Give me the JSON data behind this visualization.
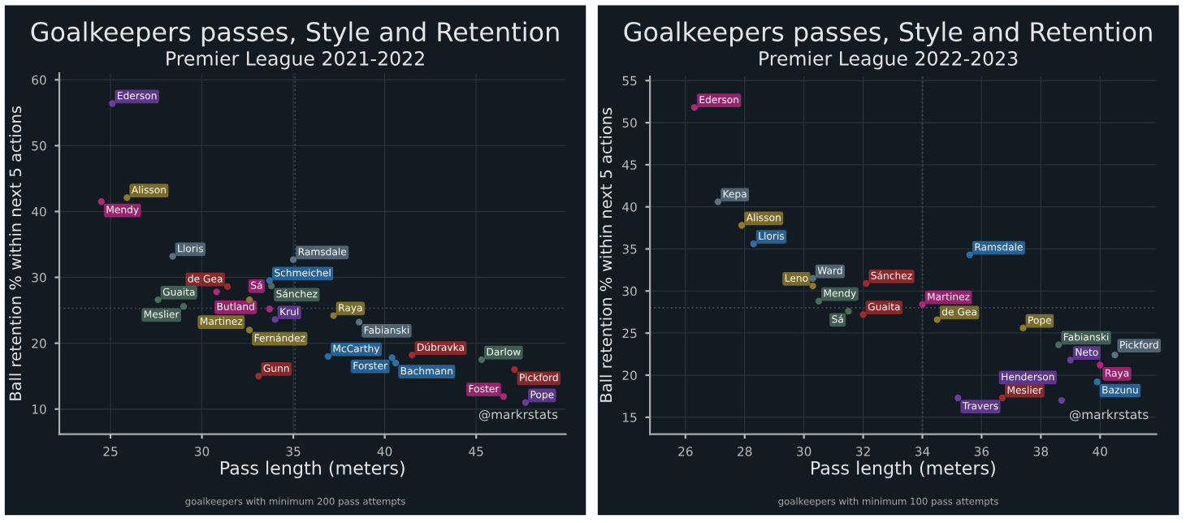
{
  "chart_data": [
    {
      "type": "scatter",
      "title": "Goalkeepers passes, Style and Retention",
      "subtitle": "Premier League 2021-2022",
      "xlabel": "Pass length (meters)",
      "ylabel": "Ball retention % within next 5 actions",
      "x": [
        25.1,
        25.9,
        24.5,
        28.4,
        35.0,
        33.7,
        33.8,
        31.4,
        30.8,
        27.6,
        29.0,
        32.6,
        33.7,
        34.0,
        32.6,
        37.2,
        38.6,
        36.9,
        40.4,
        41.5,
        40.6,
        33.1,
        45.3,
        47.1,
        46.5,
        47.7
      ],
      "values": [
        56.4,
        42.1,
        41.5,
        33.2,
        32.7,
        29.5,
        28.7,
        28.6,
        27.8,
        26.6,
        25.6,
        26.6,
        25.2,
        23.6,
        22.0,
        24.2,
        23.2,
        18.0,
        17.8,
        18.2,
        17.0,
        15.0,
        17.5,
        16.0,
        11.9,
        11.0
      ],
      "colors": [
        "#6a3d9a",
        "#8c7a2a",
        "#b0267a",
        "#5a7080",
        "#5a7080",
        "#2a6fa8",
        "#4a6a5a",
        "#9b2d2d",
        "#b0267a",
        "#4a6a5a",
        "#4a6a5a",
        "#8c7a2a",
        "#b0267a",
        "#6a3d9a",
        "#8c7a2a",
        "#8c7a2a",
        "#5a7080",
        "#2a6fa8",
        "#2a6fa8",
        "#9b2d2d",
        "#2a6fa8",
        "#9b2d2d",
        "#4a6a5a",
        "#9b2d2d",
        "#b0267a",
        "#6a3d9a"
      ],
      "annotations": [
        {
          "text": "Ederson",
          "x": 25.1,
          "y": 56.4
        },
        {
          "text": "Alisson",
          "x": 25.9,
          "y": 42.1
        },
        {
          "text": "Mendy",
          "x": 24.5,
          "y": 41.5
        },
        {
          "text": "Lloris",
          "x": 28.4,
          "y": 33.2
        },
        {
          "text": "Ramsdale",
          "x": 35.0,
          "y": 32.7
        },
        {
          "text": "Schmeichel",
          "x": 33.7,
          "y": 29.5
        },
        {
          "text": "Sánchez",
          "x": 33.8,
          "y": 28.7
        },
        {
          "text": "de Gea",
          "x": 31.4,
          "y": 28.6
        },
        {
          "text": "Butland",
          "x": 30.8,
          "y": 27.8
        },
        {
          "text": "Guaita",
          "x": 27.6,
          "y": 26.6
        },
        {
          "text": "Meslier",
          "x": 29.0,
          "y": 25.6
        },
        {
          "text": "Martinez",
          "x": 32.6,
          "y": 26.6
        },
        {
          "text": "Sá",
          "x": 33.7,
          "y": 25.2
        },
        {
          "text": "Krul",
          "x": 34.0,
          "y": 23.6
        },
        {
          "text": "Fernández",
          "x": 32.6,
          "y": 22.0
        },
        {
          "text": "Raya",
          "x": 37.2,
          "y": 24.2
        },
        {
          "text": "Fabianski",
          "x": 38.6,
          "y": 23.2
        },
        {
          "text": "McCarthy",
          "x": 36.9,
          "y": 18.0
        },
        {
          "text": "Forster",
          "x": 40.4,
          "y": 17.8
        },
        {
          "text": "Dúbravka",
          "x": 41.5,
          "y": 18.2
        },
        {
          "text": "Bachmann",
          "x": 40.6,
          "y": 17.0
        },
        {
          "text": "Gunn",
          "x": 33.1,
          "y": 15.0
        },
        {
          "text": "Darlow",
          "x": 45.3,
          "y": 17.5
        },
        {
          "text": "Pickford",
          "x": 47.1,
          "y": 16.0
        },
        {
          "text": "Foster",
          "x": 46.5,
          "y": 11.9
        },
        {
          "text": "Pope",
          "x": 47.7,
          "y": 11.0
        },
        "@markrstats",
        "goalkeepers with minimum 200 pass attempts"
      ],
      "xlim": [
        22.2,
        49.9
      ],
      "ylim": [
        6.2,
        61
      ],
      "xticks": [
        25,
        30,
        35,
        40,
        45
      ],
      "yticks": [
        10,
        20,
        30,
        40,
        50,
        60
      ],
      "grid": true,
      "marker": "circle",
      "ref_lines": [
        {
          "axis": "x",
          "value": 35.1,
          "line_style": "dotted"
        },
        {
          "axis": "y",
          "value": 25.3,
          "line_style": "dotted"
        }
      ]
    },
    {
      "type": "scatter",
      "title": "Goalkeepers passes, Style and Retention",
      "subtitle": "Premier League 2022-2023",
      "xlabel": "Pass length (meters)",
      "ylabel": "Ball retention % within next 5 actions",
      "x": [
        26.3,
        27.1,
        27.9,
        28.3,
        35.6,
        30.3,
        30.3,
        30.5,
        31.5,
        32.0,
        32.1,
        34.0,
        34.5,
        37.4,
        38.6,
        39.0,
        40.5,
        40.0,
        39.9,
        35.2,
        36.7,
        38.7
      ],
      "values": [
        51.8,
        40.6,
        37.8,
        35.6,
        34.3,
        31.5,
        30.6,
        28.8,
        27.6,
        27.2,
        30.9,
        28.4,
        26.6,
        25.6,
        23.6,
        21.8,
        22.4,
        21.2,
        19.2,
        17.3,
        17.3,
        17.0
      ],
      "colors": [
        "#b0267a",
        "#5a7080",
        "#8c7a2a",
        "#2a6fa8",
        "#2a6fa8",
        "#5a7080",
        "#8c7a2a",
        "#4a6a5a",
        "#4a6a5a",
        "#9b2d2d",
        "#9b2d2d",
        "#b0267a",
        "#8c7a2a",
        "#8c7a2a",
        "#4a6a5a",
        "#6a3d9a",
        "#5a7080",
        "#b0267a",
        "#2a6fa8",
        "#6a3d9a",
        "#9b2d2d",
        "#6a3d9a"
      ],
      "annotations": [
        {
          "text": "Ederson",
          "x": 26.3,
          "y": 51.8
        },
        {
          "text": "Kepa",
          "x": 27.1,
          "y": 40.6
        },
        {
          "text": "Alisson",
          "x": 27.9,
          "y": 37.8
        },
        {
          "text": "Lloris",
          "x": 28.3,
          "y": 35.6
        },
        {
          "text": "Ramsdale",
          "x": 35.6,
          "y": 34.3
        },
        {
          "text": "Ward",
          "x": 30.3,
          "y": 31.5
        },
        {
          "text": "Leno",
          "x": 30.3,
          "y": 30.6
        },
        {
          "text": "Mendy",
          "x": 30.5,
          "y": 28.8
        },
        {
          "text": "Sá",
          "x": 31.5,
          "y": 27.6
        },
        {
          "text": "Guaita",
          "x": 32.0,
          "y": 27.2
        },
        {
          "text": "Sánchez",
          "x": 32.1,
          "y": 30.9
        },
        {
          "text": "Martinez",
          "x": 34.0,
          "y": 28.4
        },
        {
          "text": "de Gea",
          "x": 34.5,
          "y": 26.6
        },
        {
          "text": "Pope",
          "x": 37.4,
          "y": 25.6
        },
        {
          "text": "Fabianski",
          "x": 38.6,
          "y": 23.6
        },
        {
          "text": "Neto",
          "x": 39.0,
          "y": 21.8
        },
        {
          "text": "Pickford",
          "x": 40.5,
          "y": 22.4
        },
        {
          "text": "Raya",
          "x": 40.0,
          "y": 21.2
        },
        {
          "text": "Bazunu",
          "x": 39.9,
          "y": 19.2
        },
        {
          "text": "Travers",
          "x": 35.2,
          "y": 17.3
        },
        {
          "text": "Meslier",
          "x": 36.7,
          "y": 17.3
        },
        {
          "text": "Henderson",
          "x": 38.7,
          "y": 17.0
        },
        "@markrstats",
        "goalkeepers with minimum 100 pass attempts"
      ],
      "xlim": [
        24.8,
        41.9
      ],
      "ylim": [
        13,
        55.5
      ],
      "xticks": [
        26,
        28,
        30,
        32,
        34,
        36,
        38,
        40
      ],
      "yticks": [
        15,
        20,
        25,
        30,
        35,
        40,
        45,
        50,
        55
      ],
      "grid": true,
      "marker": "circle",
      "ref_lines": [
        {
          "axis": "y",
          "value": 28,
          "line_style": "dotted"
        },
        {
          "axis": "x",
          "value": 34.0,
          "line_style": "dotted"
        }
      ]
    }
  ]
}
